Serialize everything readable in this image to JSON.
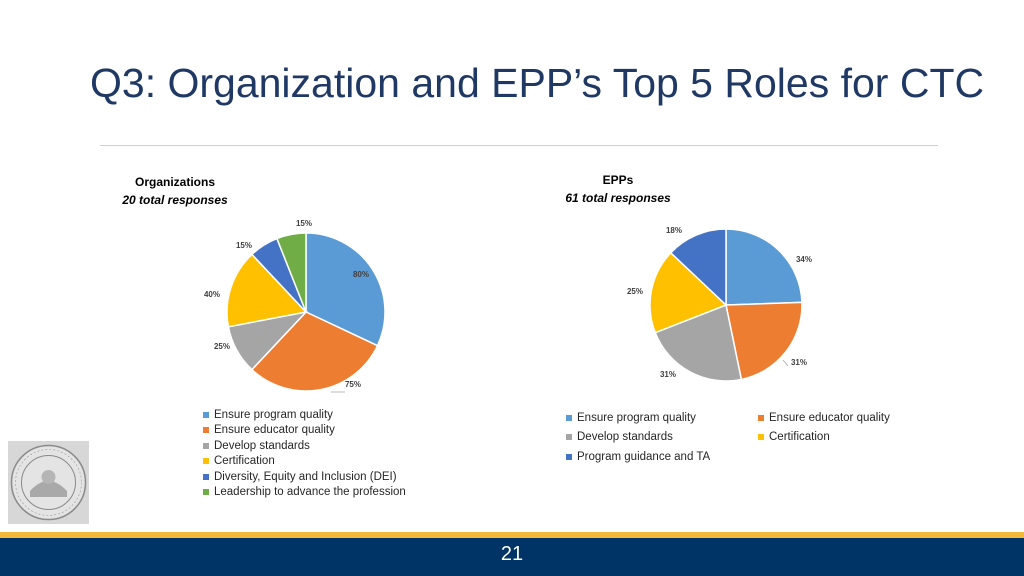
{
  "slide": {
    "title": "Q3: Organization and EPP’s Top 5 Roles for CTC",
    "page_number": "21"
  },
  "chart_data": [
    {
      "type": "pie",
      "title": "Organizations",
      "subtitle": "20 total responses",
      "categories": [
        "Ensure program quality",
        "Ensure educator quality",
        "Develop standards",
        "Certification",
        "Diversity, Equity and Inclusion (DEI)",
        "Leadership to advance the profession"
      ],
      "values": [
        80,
        75,
        25,
        40,
        15,
        15
      ],
      "labels": [
        "80%",
        "75%",
        "25%",
        "40%",
        "15%",
        "15%"
      ],
      "colors": [
        "#5b9bd5",
        "#ed7d31",
        "#a5a5a5",
        "#ffc000",
        "#4472c4",
        "#70ad47"
      ]
    },
    {
      "type": "pie",
      "title": "EPPs",
      "subtitle": "61 total responses",
      "categories": [
        "Ensure program quality",
        "Ensure educator quality",
        "Develop standards",
        "Certification",
        "Program guidance and TA"
      ],
      "values": [
        34,
        31,
        31,
        25,
        18
      ],
      "labels": [
        "34%",
        "31%",
        "31%",
        "25%",
        "18%"
      ],
      "colors": [
        "#5b9bd5",
        "#ed7d31",
        "#a5a5a5",
        "#ffc000",
        "#4472c4"
      ]
    }
  ]
}
